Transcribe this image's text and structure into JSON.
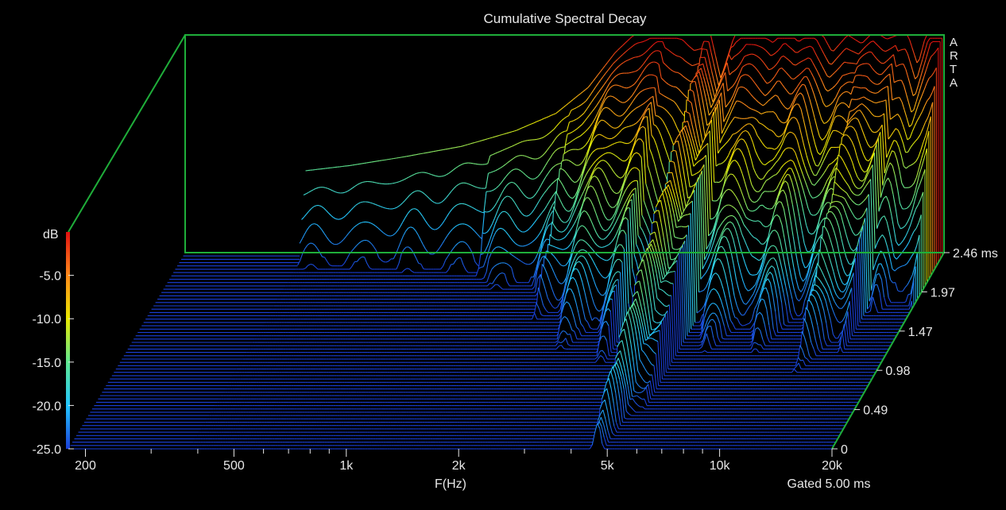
{
  "chart_data": {
    "type": "area",
    "title": "Cumulative Spectral Decay",
    "xlabel": "F(Hz)",
    "ylabel": "dB",
    "zlabel": "ms",
    "note": "Gated 5.00 ms",
    "brand": [
      "A",
      "R",
      "T",
      "A"
    ],
    "x_scale": "log",
    "xlim": [
      180,
      20000
    ],
    "ylim": [
      -25,
      0
    ],
    "zlim": [
      0,
      2.46
    ],
    "x_ticks": [
      "200",
      "500",
      "1k",
      "2k",
      "5k",
      "10k",
      "20k"
    ],
    "y_ticks": [
      "dB",
      "-5.0",
      "-10.0",
      "-15.0",
      "-20.0",
      "-25.0"
    ],
    "z_ticks": [
      "0",
      "0.49",
      "0.98",
      "1.47",
      "1.97",
      "2.46 ms"
    ],
    "colormap": [
      "#1a3fd8",
      "#22c6ff",
      "#5fe890",
      "#e8e800",
      "#ff8a1a",
      "#e01010"
    ],
    "frame_color": "#1fae3a",
    "slices": 60,
    "initial_response": {
      "freq_hz": [
        380,
        500,
        700,
        1000,
        1400,
        1800,
        2200,
        2600,
        3000,
        3500,
        4000,
        4300,
        4700,
        5000,
        5500,
        6000,
        6500,
        7000,
        7600,
        8200,
        9000,
        10000,
        11000,
        12000,
        13000,
        14000,
        15000,
        16000,
        17000,
        18000,
        19000,
        20000
      ],
      "db": [
        -15.6,
        -15.0,
        -14.0,
        -12.8,
        -11.0,
        -9.0,
        -6.0,
        -2.0,
        0.5,
        1.5,
        1.5,
        0.0,
        0.0,
        -5.0,
        0.5,
        2.0,
        1.0,
        0.5,
        2.5,
        0.5,
        1.5,
        -2.0,
        0.0,
        -1.0,
        0.5,
        -0.5,
        0.0,
        0.0,
        -3.5,
        0.5,
        4.0,
        5.0
      ]
    }
  }
}
